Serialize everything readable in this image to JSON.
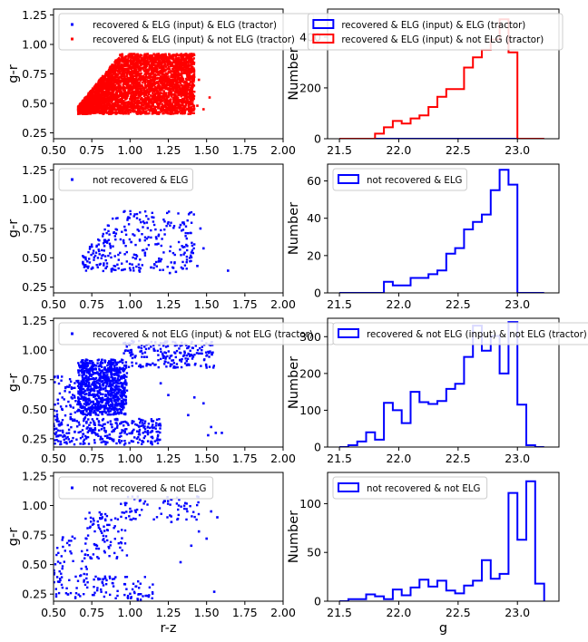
{
  "chart_data": [
    {
      "type": "scatter",
      "xlabel": "",
      "ylabel": "g-r",
      "xlim": [
        0.5,
        2.0
      ],
      "ylim": [
        0.2,
        1.3
      ],
      "xticks": [
        "0.50",
        "0.75",
        "1.00",
        "1.25",
        "1.50",
        "1.75",
        "2.00"
      ],
      "yticks": [
        "0.25",
        "0.50",
        "0.75",
        "1.00",
        "1.25"
      ],
      "legend_position": "top-left",
      "series": [
        {
          "name": "recovered & ELG (input) & ELG (tractor)",
          "color": "#0000ff",
          "points": []
        },
        {
          "name": "recovered & ELG (input) & not ELG (tractor)",
          "color": "#ff0000",
          "region": {
            "xmin": 0.66,
            "xmax": 1.42,
            "ymin": 0.41,
            "ymax": 0.92,
            "n": 4200
          },
          "points": [
            [
              1.48,
              0.45
            ],
            [
              1.52,
              0.55
            ],
            [
              1.36,
              0.52
            ],
            [
              1.4,
              0.62
            ],
            [
              1.3,
              0.44
            ],
            [
              1.45,
              0.7
            ],
            [
              1.38,
              0.82
            ],
            [
              1.44,
              0.48
            ]
          ]
        }
      ]
    },
    {
      "type": "step",
      "xlabel": "",
      "ylabel": "Number",
      "xlim": [
        21.4,
        23.35
      ],
      "ylim": [
        0,
        510
      ],
      "xticks": [
        "21.5",
        "22.0",
        "22.5",
        "23.0"
      ],
      "yticks": [
        "0",
        "200",
        "400"
      ],
      "legend_position": "top-right",
      "bin_edges": [
        21.5,
        21.575,
        21.65,
        21.725,
        21.8,
        21.875,
        21.95,
        22.025,
        22.1,
        22.175,
        22.25,
        22.325,
        22.4,
        22.475,
        22.55,
        22.625,
        22.7,
        22.775,
        22.85,
        22.925,
        23.0,
        23.075,
        23.15,
        23.225
      ],
      "series": [
        {
          "name": "recovered & ELG (input) & ELG (tractor)",
          "color": "#0000ff",
          "counts": [
            0,
            0,
            0,
            0,
            0,
            0,
            0,
            0,
            0,
            0,
            0,
            0,
            0,
            0,
            0,
            0,
            0,
            0,
            0,
            0,
            0,
            0,
            0
          ]
        },
        {
          "name": "recovered & ELG (input) & not ELG (tractor)",
          "color": "#ff0000",
          "counts": [
            0,
            0,
            0,
            0,
            20,
            45,
            70,
            60,
            80,
            92,
            125,
            165,
            195,
            195,
            280,
            320,
            350,
            390,
            470,
            340,
            0,
            0,
            0
          ]
        }
      ]
    },
    {
      "type": "scatter",
      "xlabel": "",
      "ylabel": "g-r",
      "xlim": [
        0.5,
        2.0
      ],
      "ylim": [
        0.2,
        1.3
      ],
      "xticks": [
        "0.50",
        "0.75",
        "1.00",
        "1.25",
        "1.50",
        "1.75",
        "2.00"
      ],
      "yticks": [
        "0.25",
        "0.50",
        "0.75",
        "1.00",
        "1.25"
      ],
      "legend_position": "top-left",
      "series": [
        {
          "name": "not recovered & ELG",
          "color": "#0000ff",
          "region": {
            "xmin": 0.69,
            "xmax": 1.42,
            "ymin": 0.38,
            "ymax": 0.9,
            "n": 300
          },
          "points": [
            [
              1.64,
              0.39
            ],
            [
              1.44,
              0.43
            ],
            [
              1.48,
              0.58
            ],
            [
              1.46,
              0.75
            ],
            [
              1.26,
              0.37
            ],
            [
              1.3,
              0.38
            ],
            [
              1.35,
              0.8
            ],
            [
              1.33,
              0.78
            ]
          ]
        }
      ]
    },
    {
      "type": "step",
      "xlabel": "",
      "ylabel": "Number",
      "xlim": [
        21.4,
        23.35
      ],
      "ylim": [
        0,
        69
      ],
      "xticks": [
        "21.5",
        "22.0",
        "22.5",
        "23.0"
      ],
      "yticks": [
        "0",
        "20",
        "40",
        "60"
      ],
      "legend_position": "top-left",
      "bin_edges": [
        21.5,
        21.575,
        21.65,
        21.725,
        21.8,
        21.875,
        21.95,
        22.025,
        22.1,
        22.175,
        22.25,
        22.325,
        22.4,
        22.475,
        22.55,
        22.625,
        22.7,
        22.775,
        22.85,
        22.925,
        23.0,
        23.075,
        23.15,
        23.225
      ],
      "series": [
        {
          "name": "not recovered & ELG",
          "color": "#0000ff",
          "counts": [
            0,
            0,
            0,
            0,
            0,
            6,
            4,
            4,
            8,
            8,
            10,
            12,
            21,
            24,
            34,
            38,
            42,
            55,
            66,
            58,
            0,
            0,
            0
          ]
        }
      ]
    },
    {
      "type": "scatter",
      "xlabel": "",
      "ylabel": "g-r",
      "xlim": [
        0.5,
        2.0
      ],
      "ylim": [
        0.18,
        1.27
      ],
      "xticks": [
        "0.50",
        "0.75",
        "1.00",
        "1.25",
        "1.50",
        "1.75",
        "2.00"
      ],
      "yticks": [
        "0.25",
        "0.50",
        "0.75",
        "1.00",
        "1.25"
      ],
      "legend_position": "top-left",
      "series": [
        {
          "name": "recovered & not ELG (input) & not ELG (tractor)",
          "color": "#0000ff",
          "regions": [
            {
              "xmin": 0.66,
              "xmax": 0.98,
              "ymin": 0.45,
              "ymax": 0.92,
              "n": 900
            },
            {
              "xmin": 0.95,
              "xmax": 1.55,
              "ymin": 0.85,
              "ymax": 1.08,
              "n": 220
            },
            {
              "xmin": 0.5,
              "xmax": 1.2,
              "ymin": 0.2,
              "ymax": 0.42,
              "n": 320
            },
            {
              "xmin": 0.5,
              "xmax": 0.72,
              "ymin": 0.42,
              "ymax": 0.78,
              "n": 70
            }
          ],
          "points": [
            [
              1.56,
              0.3
            ],
            [
              1.6,
              0.3
            ],
            [
              1.51,
              0.28
            ],
            [
              1.53,
              0.35
            ],
            [
              1.38,
              0.45
            ],
            [
              1.42,
              0.6
            ],
            [
              1.48,
              0.55
            ],
            [
              1.25,
              0.62
            ],
            [
              1.2,
              0.72
            ]
          ]
        }
      ]
    },
    {
      "type": "step",
      "xlabel": "",
      "ylabel": "Number",
      "xlim": [
        21.4,
        23.35
      ],
      "ylim": [
        0,
        350
      ],
      "xticks": [
        "21.5",
        "22.0",
        "22.5",
        "23.0"
      ],
      "yticks": [
        "0",
        "100",
        "200",
        "300"
      ],
      "legend_position": "top",
      "bin_edges": [
        21.5,
        21.575,
        21.65,
        21.725,
        21.8,
        21.875,
        21.95,
        22.025,
        22.1,
        22.175,
        22.25,
        22.325,
        22.4,
        22.475,
        22.55,
        22.625,
        22.7,
        22.775,
        22.85,
        22.925,
        23.0,
        23.075,
        23.15,
        23.225
      ],
      "series": [
        {
          "name": "recovered & not ELG (input) & not ELG (tractor)",
          "color": "#0000ff",
          "counts": [
            0,
            5,
            15,
            40,
            20,
            120,
            100,
            65,
            150,
            122,
            117,
            125,
            158,
            172,
            245,
            330,
            262,
            302,
            200,
            340,
            115,
            5,
            0
          ]
        }
      ]
    },
    {
      "type": "scatter",
      "xlabel": "r-z",
      "ylabel": "g-r",
      "xlim": [
        0.5,
        2.0
      ],
      "ylim": [
        0.19,
        1.28
      ],
      "xticks": [
        "0.50",
        "0.75",
        "1.00",
        "1.25",
        "1.50",
        "1.75",
        "2.00"
      ],
      "yticks": [
        "0.25",
        "0.50",
        "0.75",
        "1.00",
        "1.25"
      ],
      "legend_position": "top-left",
      "series": [
        {
          "name": "not recovered & not ELG",
          "color": "#0000ff",
          "regions": [
            {
              "xmin": 0.7,
              "xmax": 0.98,
              "ymin": 0.55,
              "ymax": 0.95,
              "n": 90
            },
            {
              "xmin": 0.92,
              "xmax": 1.45,
              "ymin": 0.88,
              "ymax": 1.08,
              "n": 70
            },
            {
              "xmin": 0.5,
              "xmax": 1.15,
              "ymin": 0.2,
              "ymax": 0.4,
              "n": 110
            },
            {
              "xmin": 0.5,
              "xmax": 0.72,
              "ymin": 0.4,
              "ymax": 0.75,
              "n": 40
            }
          ],
          "points": [
            [
              1.55,
              0.27
            ],
            [
              1.57,
              0.9
            ],
            [
              1.5,
              0.72
            ],
            [
              1.4,
              0.66
            ],
            [
              1.45,
              0.78
            ],
            [
              1.33,
              0.52
            ],
            [
              1.27,
              0.86
            ],
            [
              1.53,
              0.95
            ]
          ]
        }
      ]
    },
    {
      "type": "step",
      "xlabel": "g",
      "ylabel": "Number",
      "xlim": [
        21.4,
        23.35
      ],
      "ylim": [
        0,
        132
      ],
      "xticks": [
        "21.5",
        "22.0",
        "22.5",
        "23.0"
      ],
      "yticks": [
        "0",
        "50",
        "100"
      ],
      "legend_position": "top-left",
      "bin_edges": [
        21.5,
        21.575,
        21.65,
        21.725,
        21.8,
        21.875,
        21.95,
        22.025,
        22.1,
        22.175,
        22.25,
        22.325,
        22.4,
        22.475,
        22.55,
        22.625,
        22.7,
        22.775,
        22.85,
        22.925,
        23.0,
        23.075,
        23.15,
        23.225
      ],
      "series": [
        {
          "name": "not recovered & not ELG",
          "color": "#0000ff",
          "counts": [
            0,
            2,
            2,
            7,
            5,
            2,
            12,
            6,
            14,
            22,
            15,
            21,
            11,
            8,
            16,
            21,
            42,
            23,
            28,
            111,
            63,
            123,
            18
          ]
        }
      ]
    }
  ]
}
